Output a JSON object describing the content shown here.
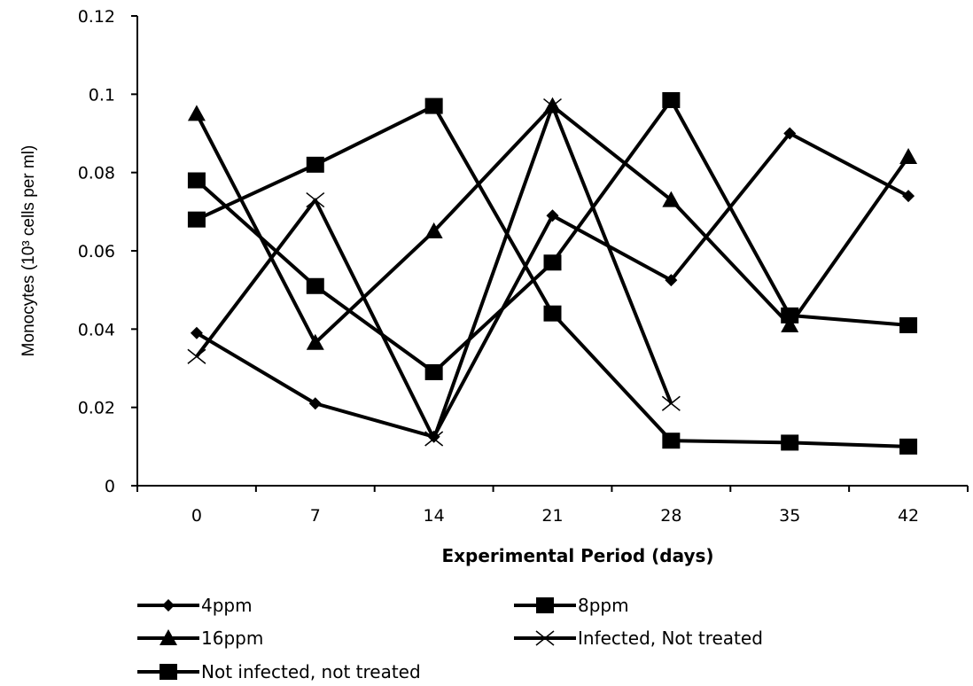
{
  "chart_data": {
    "type": "line",
    "x": [
      0,
      7,
      14,
      21,
      28,
      35,
      42
    ],
    "x_tick_labels": [
      "0",
      "7",
      "14",
      "21",
      "28",
      "35",
      "42"
    ],
    "y_tick_labels": [
      "0",
      "0.02",
      "0.04",
      "0.06",
      "0.08",
      "0.1",
      "0.12"
    ],
    "ylim": [
      0,
      0.12
    ],
    "xlabel": "Experimental Period (days)",
    "ylabel": "Monocytes (10³ cells per ml)",
    "grid": false,
    "legend_position": "bottom",
    "series": [
      {
        "name": "4ppm",
        "marker": "diamond",
        "values": [
          0.039,
          0.021,
          0.0125,
          0.069,
          0.0525,
          0.09,
          0.074
        ]
      },
      {
        "name": "8ppm",
        "marker": "square",
        "values": [
          0.078,
          0.051,
          0.029,
          0.057,
          0.0985,
          0.0435,
          0.041
        ]
      },
      {
        "name": "16ppm",
        "marker": "triangle",
        "values": [
          0.095,
          0.0365,
          0.065,
          0.097,
          0.073,
          0.041,
          0.084
        ]
      },
      {
        "name": "Infected, Not treated",
        "marker": "x",
        "values": [
          0.033,
          0.073,
          0.012,
          0.097,
          0.021,
          null,
          null
        ]
      },
      {
        "name": "Not infected, not treated",
        "marker": "square",
        "values": [
          0.068,
          0.082,
          0.097,
          0.044,
          0.0115,
          0.011,
          0.01
        ]
      }
    ]
  }
}
